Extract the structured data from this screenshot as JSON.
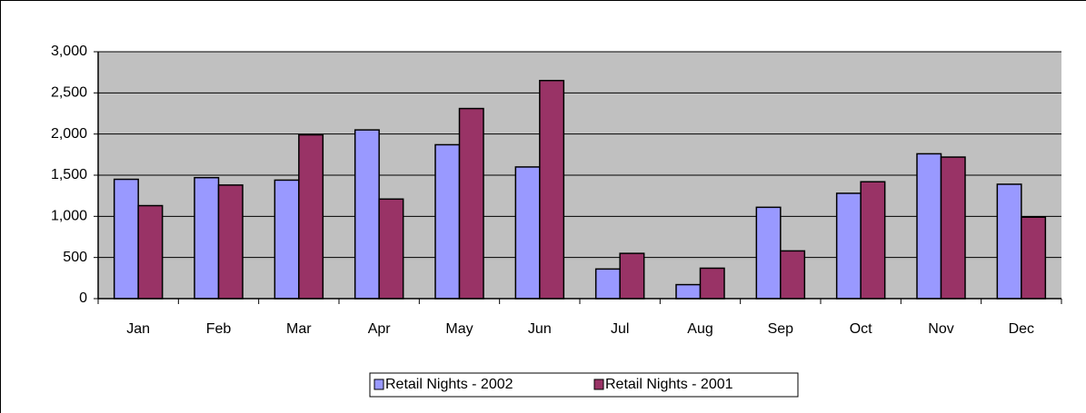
{
  "chart_data": {
    "type": "bar",
    "categories": [
      "Jan",
      "Feb",
      "Mar",
      "Apr",
      "May",
      "Jun",
      "Jul",
      "Aug",
      "Sep",
      "Oct",
      "Nov",
      "Dec"
    ],
    "series": [
      {
        "name": "Retail Nights - 2002",
        "color": "#9999ff",
        "values": [
          1450,
          1470,
          1440,
          2050,
          1870,
          1600,
          360,
          170,
          1110,
          1280,
          1760,
          1390
        ]
      },
      {
        "name": "Retail Nights - 2001",
        "color": "#993366",
        "values": [
          1130,
          1380,
          1990,
          1210,
          2310,
          2650,
          550,
          370,
          580,
          1420,
          1720,
          990
        ]
      }
    ],
    "ylim": [
      0,
      3000
    ],
    "yticks": [
      0,
      500,
      {
        "value": 1000,
        "label": "1,000"
      },
      {
        "value": 1500,
        "label": "1,500"
      },
      {
        "value": 2000,
        "label": "2,000"
      },
      {
        "value": 2500,
        "label": "2,500"
      },
      {
        "value": 3000,
        "label": "3,000"
      }
    ],
    "grid": true,
    "legend": "bottom"
  }
}
